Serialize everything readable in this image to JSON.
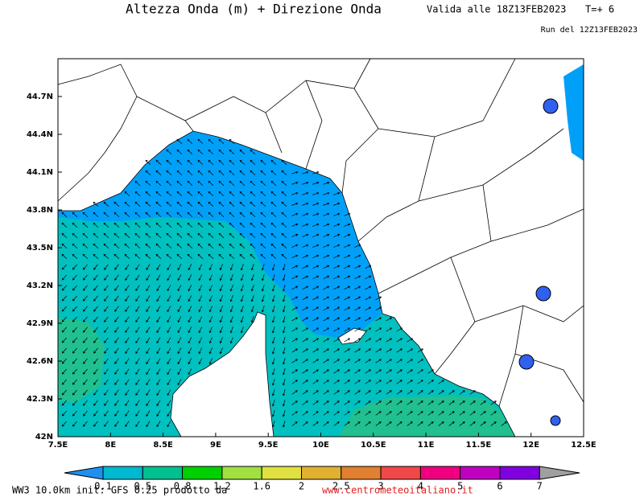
{
  "header": {
    "title": "Altezza Onda (m) + Direzione Onda",
    "valid": "Valida alle 18Z13FEB2023",
    "step": "T=+ 6",
    "run": "Run del 12Z13FEB2023"
  },
  "map": {
    "lat_labels": [
      "44.7N",
      "44.4N",
      "44.1N",
      "43.8N",
      "43.5N",
      "43.2N",
      "42.9N",
      "42.6N",
      "42.3N",
      "42N"
    ],
    "lon_labels": [
      "7.5E",
      "8E",
      "8.5E",
      "9E",
      "9.5E",
      "10E",
      "10.5E",
      "11E",
      "11.5E",
      "12E",
      "12.5E"
    ]
  },
  "colorbar": {
    "labels": [
      "0.1",
      "0.5",
      "0.8",
      "1.2",
      "1.6",
      "2",
      "2.5",
      "3",
      "4",
      "5",
      "6",
      "7"
    ]
  },
  "footer": {
    "model": "WW3 10.0km init: GFS 0.25 prodotto da",
    "site": "www.centrometeoitaliano.it"
  }
}
